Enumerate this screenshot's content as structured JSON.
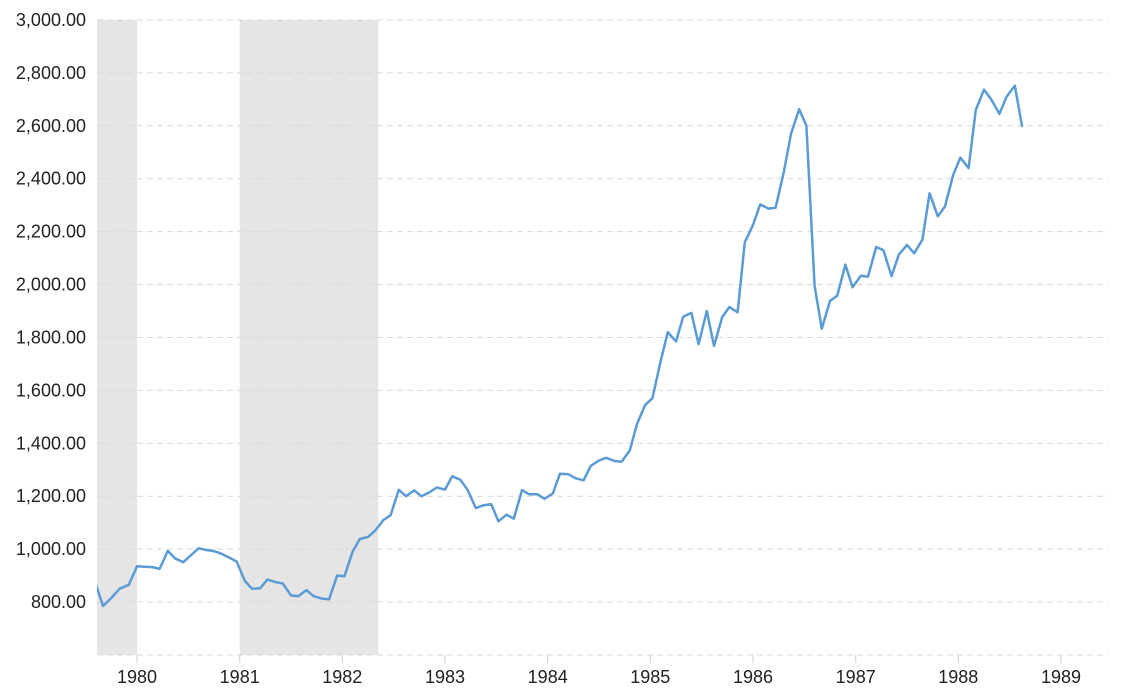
{
  "chart_data": {
    "type": "line",
    "title": "",
    "xlabel": "",
    "ylabel": "",
    "xlim": [
      1979.6,
      1989.5
    ],
    "ylim": [
      720,
      3000
    ],
    "y_ticks": [
      {
        "value": 800,
        "label": "800.00"
      },
      {
        "value": 1000,
        "label": "1,000.00"
      },
      {
        "value": 1200,
        "label": "1,200.00"
      },
      {
        "value": 1400,
        "label": "1,400.00"
      },
      {
        "value": 1600,
        "label": "1,600.00"
      },
      {
        "value": 1800,
        "label": "1,800.00"
      },
      {
        "value": 2000,
        "label": "2,000.00"
      },
      {
        "value": 2200,
        "label": "2,200.00"
      },
      {
        "value": 2400,
        "label": "2,400.00"
      },
      {
        "value": 2600,
        "label": "2,600.00"
      },
      {
        "value": 2800,
        "label": "2,800.00"
      },
      {
        "value": 3000,
        "label": "3,000.00"
      }
    ],
    "x_ticks": [
      {
        "value": 1980,
        "label": "1980"
      },
      {
        "value": 1981,
        "label": "1981"
      },
      {
        "value": 1982,
        "label": "1982"
      },
      {
        "value": 1983,
        "label": "1983"
      },
      {
        "value": 1984,
        "label": "1984"
      },
      {
        "value": 1985,
        "label": "1985"
      },
      {
        "value": 1986,
        "label": "1986"
      },
      {
        "value": 1987,
        "label": "1987"
      },
      {
        "value": 1988,
        "label": "1988"
      },
      {
        "value": 1989,
        "label": "1989"
      }
    ],
    "grid": true,
    "legend": "none",
    "recessions": [
      [
        1979.6,
        1980.0
      ],
      [
        1981.0,
        1982.35
      ]
    ],
    "colors": {
      "line": "#5b9bd5",
      "recession": "#e5e5e5",
      "grid": "#d9d9d9",
      "text": "#222222"
    },
    "series": [
      {
        "points": [
          [
            1979.6,
            866
          ],
          [
            1979.67,
            785
          ],
          [
            1979.75,
            815
          ],
          [
            1979.83,
            850
          ],
          [
            1979.92,
            865
          ],
          [
            1980.0,
            935
          ],
          [
            1980.07,
            933
          ],
          [
            1980.15,
            932
          ],
          [
            1980.22,
            925
          ],
          [
            1980.3,
            993
          ],
          [
            1980.37,
            965
          ],
          [
            1980.45,
            950
          ],
          [
            1980.52,
            975
          ],
          [
            1980.6,
            1003
          ],
          [
            1980.67,
            997
          ],
          [
            1980.75,
            992
          ],
          [
            1980.82,
            983
          ],
          [
            1980.9,
            967
          ],
          [
            1980.97,
            953
          ],
          [
            1981.05,
            880
          ],
          [
            1981.12,
            850
          ],
          [
            1981.2,
            852
          ],
          [
            1981.27,
            885
          ],
          [
            1981.35,
            875
          ],
          [
            1981.42,
            870
          ],
          [
            1981.5,
            825
          ],
          [
            1981.57,
            822
          ],
          [
            1981.65,
            845
          ],
          [
            1981.72,
            822
          ],
          [
            1981.8,
            813
          ],
          [
            1981.87,
            810
          ],
          [
            1981.95,
            900
          ],
          [
            1982.02,
            897
          ],
          [
            1982.1,
            990
          ],
          [
            1982.17,
            1038
          ],
          [
            1982.25,
            1046
          ],
          [
            1982.32,
            1070
          ],
          [
            1982.4,
            1110
          ],
          [
            1982.47,
            1128
          ],
          [
            1982.55,
            1224
          ],
          [
            1982.62,
            1200
          ],
          [
            1982.7,
            1222
          ],
          [
            1982.77,
            1200
          ],
          [
            1982.85,
            1215
          ],
          [
            1982.92,
            1233
          ],
          [
            1983.0,
            1225
          ],
          [
            1983.07,
            1275
          ],
          [
            1983.15,
            1262
          ],
          [
            1983.22,
            1224
          ],
          [
            1983.3,
            1155
          ],
          [
            1983.37,
            1165
          ],
          [
            1983.45,
            1170
          ],
          [
            1983.52,
            1105
          ],
          [
            1983.6,
            1130
          ],
          [
            1983.67,
            1115
          ],
          [
            1983.75,
            1223
          ],
          [
            1983.82,
            1207
          ],
          [
            1983.9,
            1207
          ],
          [
            1983.97,
            1190
          ],
          [
            1984.05,
            1210
          ],
          [
            1984.12,
            1285
          ],
          [
            1984.2,
            1283
          ],
          [
            1984.27,
            1268
          ],
          [
            1984.35,
            1260
          ],
          [
            1984.42,
            1315
          ],
          [
            1984.5,
            1335
          ],
          [
            1984.57,
            1345
          ],
          [
            1984.65,
            1333
          ],
          [
            1984.72,
            1330
          ],
          [
            1984.8,
            1373
          ],
          [
            1984.87,
            1473
          ],
          [
            1984.95,
            1545
          ],
          [
            1985.02,
            1570
          ],
          [
            1985.1,
            1710
          ],
          [
            1985.17,
            1820
          ],
          [
            1985.25,
            1785
          ],
          [
            1985.32,
            1878
          ],
          [
            1985.4,
            1893
          ],
          [
            1985.47,
            1775
          ],
          [
            1985.55,
            1900
          ],
          [
            1985.62,
            1768
          ],
          [
            1985.7,
            1877
          ],
          [
            1985.77,
            1915
          ],
          [
            1985.85,
            1895
          ],
          [
            1985.92,
            2160
          ],
          [
            1986.0,
            2225
          ],
          [
            1986.07,
            2303
          ],
          [
            1986.15,
            2287
          ],
          [
            1986.22,
            2290
          ],
          [
            1986.3,
            2425
          ],
          [
            1986.37,
            2570
          ],
          [
            1986.45,
            2663
          ],
          [
            1986.52,
            2600
          ],
          [
            1986.6,
            1995
          ],
          [
            1986.67,
            1833
          ],
          [
            1986.75,
            1938
          ],
          [
            1986.82,
            1958
          ],
          [
            1986.9,
            2075
          ],
          [
            1986.97,
            1990
          ],
          [
            1987.05,
            2033
          ],
          [
            1987.12,
            2030
          ],
          [
            1987.2,
            2142
          ],
          [
            1987.27,
            2130
          ],
          [
            1987.35,
            2032
          ],
          [
            1987.42,
            2113
          ],
          [
            1987.5,
            2150
          ],
          [
            1987.57,
            2118
          ],
          [
            1987.65,
            2170
          ],
          [
            1987.72,
            2345
          ],
          [
            1987.8,
            2258
          ],
          [
            1987.87,
            2295
          ],
          [
            1987.95,
            2415
          ],
          [
            1988.02,
            2480
          ],
          [
            1988.1,
            2440
          ],
          [
            1988.17,
            2660
          ],
          [
            1988.25,
            2737
          ],
          [
            1988.32,
            2700
          ],
          [
            1988.4,
            2645
          ],
          [
            1988.47,
            2710
          ],
          [
            1988.55,
            2752
          ],
          [
            1988.62,
            2600
          ]
        ]
      }
    ]
  }
}
